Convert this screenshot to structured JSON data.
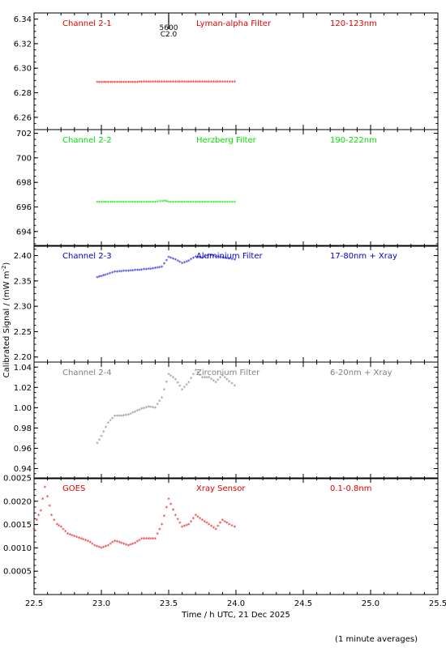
{
  "figure": {
    "ylabel": "Calibrated Signal / (mW m",
    "ylabel_sup": "-2",
    "ylabel_close": ")",
    "xlabel": "Time / h UTC, 21 Dec 2025",
    "footnote": "(1 minute averages)",
    "top_marker": {
      "x": 23.5,
      "line1": "5600",
      "line2": "C2.0"
    }
  },
  "chart_data": [
    {
      "type": "scatter",
      "panel": 1,
      "channel": "Channel 2-1",
      "filter": "Lyman-alpha Filter",
      "band": "120-123nm",
      "color": "#e00000",
      "xlim": [
        22.5,
        25.5
      ],
      "ylim": [
        6.25,
        6.345
      ],
      "yticks": [
        "6.26",
        "6.28",
        "6.30",
        "6.32",
        "6.34"
      ],
      "series": [
        {
          "points": [
            [
              22.97,
              6.2885
            ],
            [
              23.1,
              6.2887
            ],
            [
              23.2,
              6.2886
            ],
            [
              23.3,
              6.2888
            ],
            [
              23.4,
              6.2888
            ],
            [
              23.5,
              6.2889
            ],
            [
              23.6,
              6.2889
            ],
            [
              23.7,
              6.289
            ],
            [
              23.8,
              6.2889
            ],
            [
              23.9,
              6.289
            ],
            [
              23.99,
              6.289
            ]
          ]
        }
      ]
    },
    {
      "type": "scatter",
      "panel": 2,
      "channel": "Channel 2-2",
      "filter": "Herzberg Filter",
      "band": "190-222nm",
      "color": "#00e000",
      "xlim": [
        22.5,
        25.5
      ],
      "ylim": [
        692.8,
        702.3
      ],
      "yticks": [
        "694",
        "696",
        "698",
        "700",
        "702"
      ],
      "series": [
        {
          "points": [
            [
              22.97,
              696.4
            ],
            [
              23.1,
              696.4
            ],
            [
              23.2,
              696.4
            ],
            [
              23.3,
              696.4
            ],
            [
              23.4,
              696.4
            ],
            [
              23.47,
              696.5
            ],
            [
              23.5,
              696.4
            ],
            [
              23.6,
              696.4
            ],
            [
              23.7,
              696.4
            ],
            [
              23.8,
              696.4
            ],
            [
              23.9,
              696.4
            ],
            [
              23.99,
              696.4
            ]
          ]
        }
      ]
    },
    {
      "type": "scatter",
      "panel": 3,
      "channel": "Channel 2-3",
      "filter": "Aluminium Filter",
      "band": "17-80nm + Xray",
      "color": "#0000d0",
      "xlim": [
        22.5,
        25.5
      ],
      "ylim": [
        2.19,
        2.42
      ],
      "yticks": [
        "2.20",
        "2.25",
        "2.30",
        "2.35",
        "2.40"
      ],
      "series": [
        {
          "points": [
            [
              22.97,
              2.357
            ],
            [
              23.03,
              2.362
            ],
            [
              23.1,
              2.368
            ],
            [
              23.2,
              2.37
            ],
            [
              23.3,
              2.372
            ],
            [
              23.4,
              2.375
            ],
            [
              23.45,
              2.378
            ],
            [
              23.5,
              2.397
            ],
            [
              23.55,
              2.392
            ],
            [
              23.6,
              2.385
            ],
            [
              23.65,
              2.39
            ],
            [
              23.7,
              2.398
            ],
            [
              23.75,
              2.395
            ],
            [
              23.8,
              2.402
            ],
            [
              23.85,
              2.398
            ],
            [
              23.9,
              2.396
            ],
            [
              23.95,
              2.394
            ],
            [
              23.99,
              2.392
            ]
          ]
        }
      ]
    },
    {
      "type": "scatter",
      "panel": 4,
      "channel": "Channel 2-4",
      "filter": "Zirconium Filter",
      "band": "6-20nm + Xray",
      "color": "#808080",
      "xlim": [
        22.5,
        25.5
      ],
      "ylim": [
        0.93,
        1.045
      ],
      "yticks": [
        "0.94",
        "0.96",
        "0.98",
        "1.00",
        "1.02",
        "1.04"
      ],
      "series": [
        {
          "points": [
            [
              22.97,
              0.965
            ],
            [
              23.0,
              0.972
            ],
            [
              23.05,
              0.985
            ],
            [
              23.1,
              0.992
            ],
            [
              23.15,
              0.992
            ],
            [
              23.2,
              0.993
            ],
            [
              23.25,
              0.996
            ],
            [
              23.3,
              0.999
            ],
            [
              23.35,
              1.001
            ],
            [
              23.4,
              1.0
            ],
            [
              23.45,
              1.01
            ],
            [
              23.5,
              1.033
            ],
            [
              23.55,
              1.028
            ],
            [
              23.6,
              1.018
            ],
            [
              23.65,
              1.025
            ],
            [
              23.7,
              1.037
            ],
            [
              23.75,
              1.03
            ],
            [
              23.8,
              1.03
            ],
            [
              23.85,
              1.025
            ],
            [
              23.9,
              1.032
            ],
            [
              23.95,
              1.026
            ],
            [
              23.99,
              1.022
            ]
          ]
        }
      ]
    },
    {
      "type": "scatter",
      "panel": 5,
      "channel": "GOES",
      "filter": "Xray Sensor",
      "band": "0.1-0.8nm",
      "color": "#e00000",
      "xlim": [
        22.5,
        25.5
      ],
      "ylim": [
        0.0,
        0.0025
      ],
      "yticks": [
        "0.0005",
        "0.0010",
        "0.0015",
        "0.0020",
        "0.0025"
      ],
      "series": [
        {
          "points": [
            [
              22.5,
              0.0014
            ],
            [
              22.52,
              0.0016
            ],
            [
              22.55,
              0.0018
            ],
            [
              22.58,
              0.0023
            ],
            [
              22.6,
              0.0021
            ],
            [
              22.63,
              0.0017
            ],
            [
              22.67,
              0.0015
            ],
            [
              22.7,
              0.00145
            ],
            [
              22.75,
              0.0013
            ],
            [
              22.8,
              0.00125
            ],
            [
              22.9,
              0.00115
            ],
            [
              22.95,
              0.00105
            ],
            [
              23.0,
              0.001
            ],
            [
              23.05,
              0.00105
            ],
            [
              23.1,
              0.00115
            ],
            [
              23.15,
              0.0011
            ],
            [
              23.2,
              0.00105
            ],
            [
              23.25,
              0.0011
            ],
            [
              23.3,
              0.0012
            ],
            [
              23.35,
              0.0012
            ],
            [
              23.4,
              0.0012
            ],
            [
              23.45,
              0.0015
            ],
            [
              23.5,
              0.00205
            ],
            [
              23.55,
              0.0017
            ],
            [
              23.6,
              0.00145
            ],
            [
              23.65,
              0.0015
            ],
            [
              23.7,
              0.0017
            ],
            [
              23.75,
              0.0016
            ],
            [
              23.8,
              0.0015
            ],
            [
              23.85,
              0.0014
            ],
            [
              23.9,
              0.0016
            ],
            [
              23.95,
              0.0015
            ],
            [
              23.99,
              0.00145
            ]
          ]
        }
      ]
    }
  ],
  "xticks": [
    "22.5",
    "23.0",
    "23.5",
    "24.0",
    "24.5",
    "25.0",
    "25.5"
  ]
}
